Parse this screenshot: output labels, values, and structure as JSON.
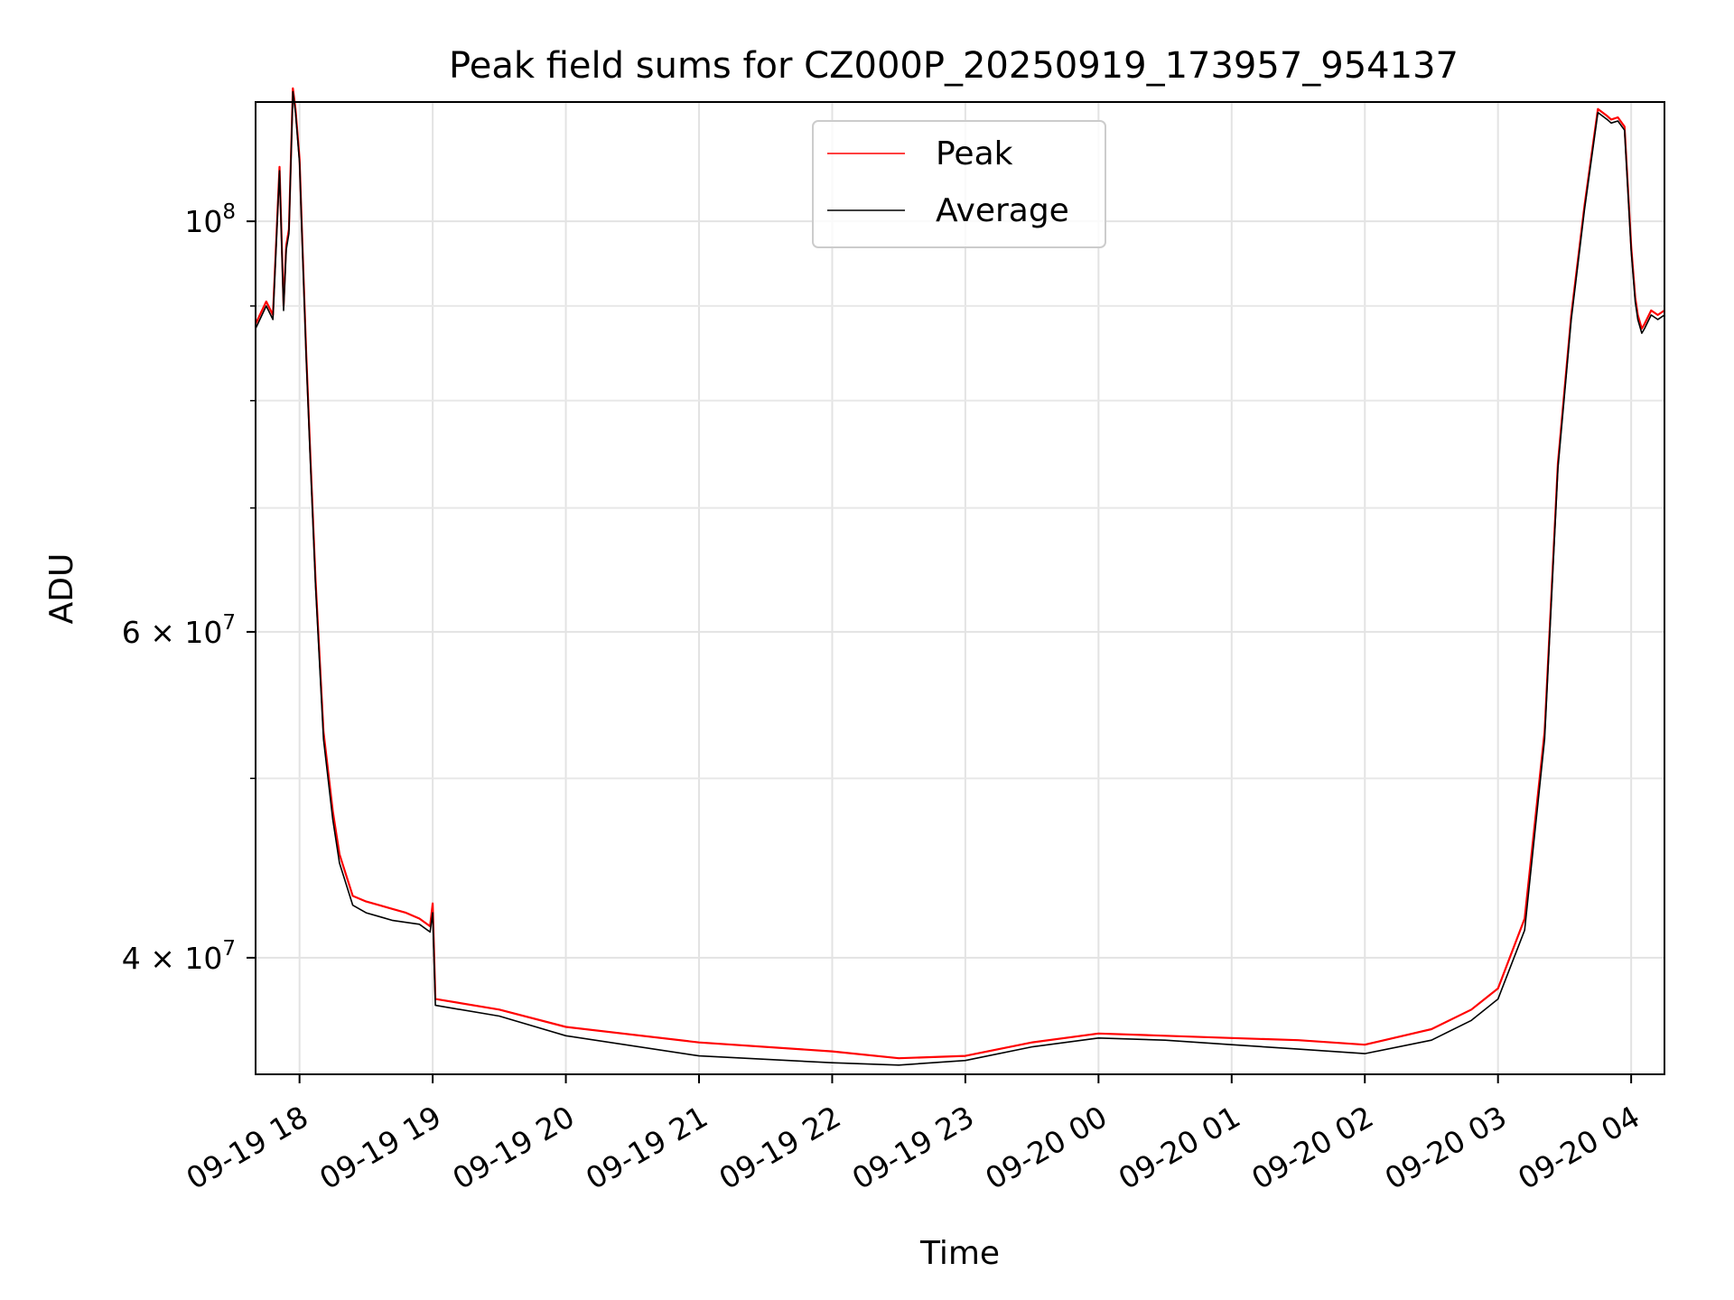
{
  "chart_data": {
    "type": "line",
    "title": "Peak field sums for CZ000P_20250919_173957_954137",
    "xlabel": "Time",
    "ylabel": "ADU",
    "yscale": "log",
    "ylim": [
      34600000,
      116000000
    ],
    "xlim_hours_from_1700": [
      0.67,
      11.25
    ],
    "grid": true,
    "legend_position": "upper center",
    "x_ticks": [
      {
        "h": 1,
        "label": "09-19 18"
      },
      {
        "h": 2,
        "label": "09-19 19"
      },
      {
        "h": 3,
        "label": "09-19 20"
      },
      {
        "h": 4,
        "label": "09-19 21"
      },
      {
        "h": 5,
        "label": "09-19 22"
      },
      {
        "h": 6,
        "label": "09-19 23"
      },
      {
        "h": 7,
        "label": "09-20 00"
      },
      {
        "h": 8,
        "label": "09-20 01"
      },
      {
        "h": 9,
        "label": "09-20 02"
      },
      {
        "h": 10,
        "label": "09-20 03"
      },
      {
        "h": 11,
        "label": "09-20 04"
      }
    ],
    "y_major_ticks": [
      {
        "v": 40000000,
        "mant": "4",
        "exp": "7"
      },
      {
        "v": 60000000,
        "mant": "6",
        "exp": "7"
      },
      {
        "v": 100000000,
        "mant": "",
        "exp": "8"
      }
    ],
    "y_minor_ticks": [
      50000000,
      70000000,
      80000000,
      90000000
    ],
    "series": [
      {
        "name": "Peak",
        "color": "#ff0000",
        "x": [
          0.67,
          0.75,
          0.8,
          0.85,
          0.88,
          0.9,
          0.92,
          0.95,
          0.97,
          1.0,
          1.02,
          1.05,
          1.08,
          1.12,
          1.18,
          1.25,
          1.3,
          1.4,
          1.5,
          1.6,
          1.7,
          1.8,
          1.9,
          1.98,
          2.0,
          2.02,
          2.5,
          3.0,
          4.0,
          5.0,
          5.5,
          6.0,
          6.5,
          7.0,
          7.5,
          8.0,
          8.5,
          9.0,
          9.5,
          9.8,
          10.0,
          10.2,
          10.35,
          10.45,
          10.55,
          10.65,
          10.75,
          10.82,
          10.85,
          10.9,
          10.95,
          11.0,
          11.03,
          11.05,
          11.08,
          11.1,
          11.15,
          11.2,
          11.25
        ],
        "y": [
          88000000,
          90500000,
          89000000,
          107000000,
          90000000,
          97000000,
          99000000,
          118000000,
          115000000,
          108000000,
          98000000,
          85000000,
          75000000,
          64000000,
          53000000,
          48000000,
          45500000,
          43200000,
          42900000,
          42700000,
          42500000,
          42300000,
          42000000,
          41600000,
          42800000,
          38000000,
          37500000,
          36700000,
          36000000,
          35600000,
          35300000,
          35400000,
          36000000,
          36400000,
          36300000,
          36200000,
          36100000,
          35900000,
          36600000,
          37500000,
          38500000,
          42000000,
          53000000,
          74000000,
          89000000,
          102000000,
          115000000,
          114000000,
          113500000,
          113800000,
          112500000,
          97000000,
          91000000,
          89000000,
          87500000,
          88000000,
          89500000,
          89000000,
          89500000
        ]
      },
      {
        "name": "Average",
        "color": "#000000",
        "x": [
          0.67,
          0.75,
          0.8,
          0.85,
          0.88,
          0.9,
          0.92,
          0.95,
          0.97,
          1.0,
          1.02,
          1.05,
          1.08,
          1.12,
          1.18,
          1.25,
          1.3,
          1.4,
          1.5,
          1.6,
          1.7,
          1.8,
          1.9,
          1.98,
          2.0,
          2.02,
          2.5,
          3.0,
          4.0,
          5.0,
          5.5,
          6.0,
          6.5,
          7.0,
          7.5,
          8.0,
          8.5,
          9.0,
          9.5,
          9.8,
          10.0,
          10.2,
          10.35,
          10.45,
          10.55,
          10.65,
          10.75,
          10.82,
          10.85,
          10.9,
          10.95,
          11.0,
          11.03,
          11.05,
          11.08,
          11.1,
          11.15,
          11.2,
          11.25
        ],
        "y": [
          87500000,
          90000000,
          88500000,
          106500000,
          89500000,
          96500000,
          98500000,
          117500000,
          114500000,
          107500000,
          97500000,
          84500000,
          74500000,
          63500000,
          52500000,
          47500000,
          45000000,
          42700000,
          42300000,
          42100000,
          41900000,
          41800000,
          41700000,
          41300000,
          42300000,
          37700000,
          37200000,
          36300000,
          35400000,
          35100000,
          35000000,
          35200000,
          35800000,
          36200000,
          36100000,
          35900000,
          35700000,
          35500000,
          36100000,
          37000000,
          38000000,
          41400000,
          52500000,
          73500000,
          88500000,
          101500000,
          114500000,
          113500000,
          113000000,
          113300000,
          112000000,
          96500000,
          90500000,
          88500000,
          87000000,
          87500000,
          89000000,
          88500000,
          89000000
        ]
      }
    ]
  }
}
